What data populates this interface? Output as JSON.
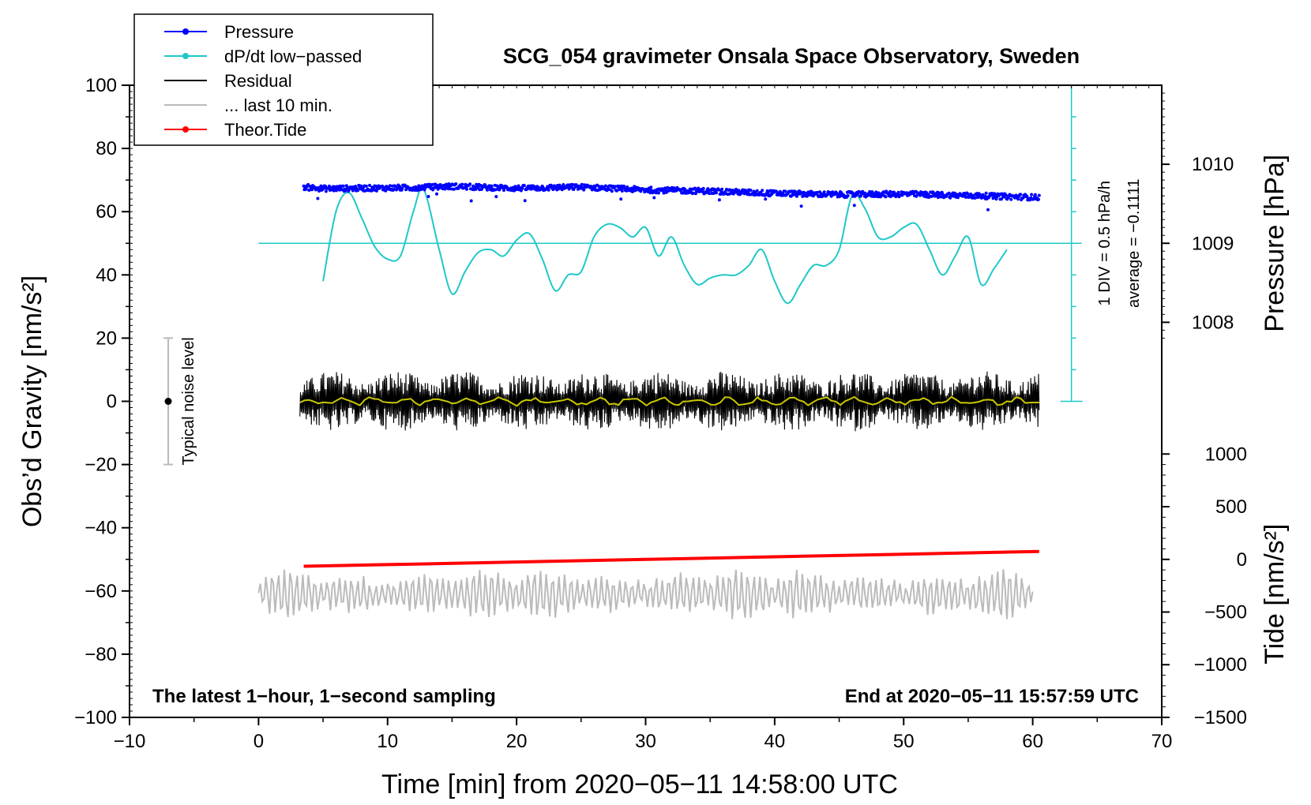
{
  "chart_data": {
    "type": "line",
    "title": "SCG_054 gravimeter Onsala Space Observatory, Sweden",
    "xlabel": "Time [min] from 2020−05−11 14:58:00 UTC",
    "ylabel": "Obs’d Gravity [nm/s²]",
    "xlim": [
      -10,
      70
    ],
    "ylim": [
      -100,
      100
    ],
    "x_ticks": [
      -10,
      0,
      10,
      20,
      30,
      40,
      50,
      60,
      70
    ],
    "x_tick_labels": [
      "−10",
      "0",
      "10",
      "20",
      "30",
      "40",
      "50",
      "60",
      "70"
    ],
    "y_ticks": [
      100,
      80,
      60,
      40,
      20,
      0,
      -20,
      -40,
      -60,
      -80,
      -100
    ],
    "y_tick_labels": [
      "100",
      "80",
      "60",
      "40",
      "20",
      "0",
      "−20",
      "−40",
      "−60",
      "−80",
      "−100"
    ],
    "pressure_axis": {
      "label": "Pressure [hPa]",
      "ticks": [
        1010,
        1009,
        1008
      ],
      "tick_labels": [
        "1010",
        "1009",
        "1008"
      ],
      "gravity_at_1009": 50,
      "gravity_per_hPa": 25
    },
    "tide_axis": {
      "label": "Tide [nm/s²]",
      "ticks": [
        1000,
        500,
        0,
        -500,
        -1000,
        -1500
      ],
      "tick_labels": [
        "1000",
        "500",
        "0",
        "−500",
        "−1000",
        "−1500"
      ],
      "gravity_at_0": -50,
      "gravity_per_unit": 0.03333
    },
    "dpdt_scale": {
      "divisions_label": "1 DIV = 0.5 hPa/h",
      "average_label": "average = −0.1111",
      "x": 63,
      "baseline_y": 50,
      "ymin": 0,
      "ymax": 100,
      "n_div": 10
    },
    "series": [
      {
        "name": "Pressure",
        "color": "#0000ff",
        "style": "dots",
        "x": [
          3.5,
          5,
          10,
          12,
          15,
          20,
          25,
          30,
          35,
          40,
          45,
          50,
          55,
          60.5
        ],
        "y": [
          67.8,
          67.3,
          67.5,
          67.6,
          68.0,
          67.4,
          67.8,
          66.9,
          66.5,
          65.8,
          65.4,
          65.6,
          65.1,
          64.5
        ],
        "noise": 0.9
      },
      {
        "name": "dP/dt low−passed",
        "color": "#1fc8c8",
        "style": "line",
        "x": [
          5,
          6,
          7,
          8,
          9,
          10,
          11,
          12,
          12.8,
          14,
          15,
          16,
          17,
          18,
          19,
          20,
          21,
          22,
          23,
          24,
          25,
          26,
          27,
          28,
          29,
          30,
          31,
          32,
          33,
          34,
          35,
          36,
          37,
          38,
          39,
          40,
          41,
          42,
          43,
          44,
          45,
          46,
          47,
          48,
          49,
          50,
          51,
          52,
          53,
          54,
          55,
          56,
          57,
          58
        ],
        "y": [
          38,
          60,
          66,
          58,
          49,
          45,
          46,
          60,
          67,
          48,
          34,
          41,
          47,
          48,
          46,
          51,
          53,
          45,
          35,
          40,
          41,
          52,
          56,
          55,
          52,
          55,
          46,
          52,
          43,
          37,
          39,
          40,
          40,
          43,
          48,
          38,
          31,
          37,
          43,
          43,
          48,
          65,
          61,
          52,
          52,
          55,
          56,
          48,
          40,
          46,
          52,
          37,
          42,
          48
        ]
      },
      {
        "name": "Residual",
        "color": "#000000",
        "style": "noise",
        "x_range": [
          3.2,
          60.5
        ],
        "center": 0,
        "amplitude": 8
      },
      {
        "name": "... last 10 min.",
        "color": "#bbbbbb",
        "style": "noise",
        "x_range": [
          0,
          60
        ],
        "center": -61,
        "amplitude": 8
      },
      {
        "name": "Theor.Tide",
        "color": "#ff0000",
        "style": "line",
        "x": [
          3.5,
          60.5
        ],
        "y": [
          -52.2,
          -47.5
        ]
      }
    ],
    "legend": {
      "placement": "top-left",
      "entries": [
        {
          "label": "Pressure",
          "color": "#0000ff",
          "marker": true
        },
        {
          "label": "dP/dt low−passed",
          "color": "#1fc8c8",
          "marker": true
        },
        {
          "label": "Residual",
          "color": "#000000",
          "marker": false
        },
        {
          "label": "... last 10 min.",
          "color": "#bbbbbb",
          "marker": false
        },
        {
          "label": "Theor.Tide",
          "color": "#ff0000",
          "marker": true
        }
      ]
    },
    "noise_indicator": {
      "label": "Typical noise level",
      "x": -7,
      "center": 0,
      "range": [
        -20,
        20
      ]
    },
    "footer_left": "The latest 1−hour, 1−second sampling",
    "footer_right": "End at 2020−05−11 15:57:59 UTC"
  }
}
